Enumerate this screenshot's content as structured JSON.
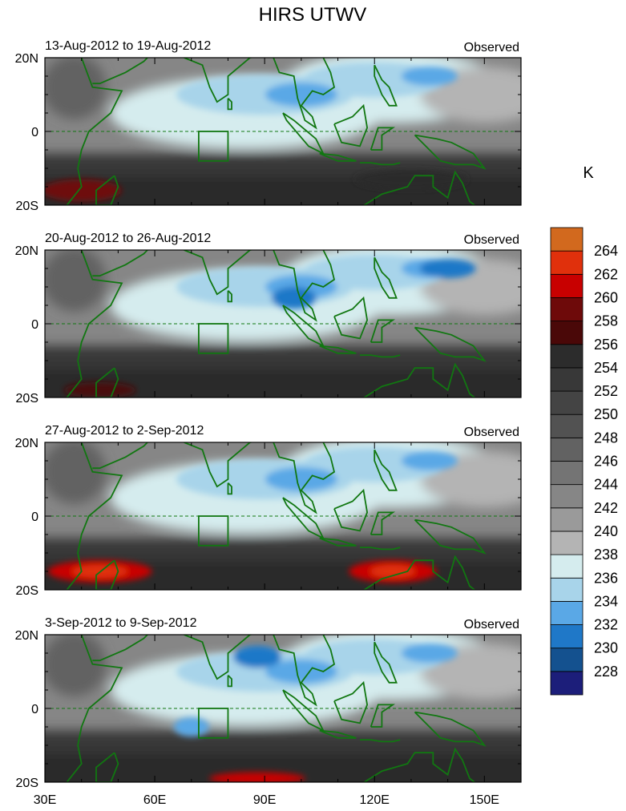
{
  "title": "HIRS UTWV",
  "colorbar": {
    "unit_label": "K",
    "levels": [
      228,
      230,
      232,
      234,
      236,
      238,
      240,
      242,
      244,
      246,
      248,
      250,
      252,
      254,
      256,
      258,
      260,
      262,
      264
    ],
    "colors": [
      "#1c1e7a",
      "#14518f",
      "#1f78c8",
      "#5aa8e6",
      "#a8d4ea",
      "#d5ecee",
      "#b4b4b4",
      "#9a9a9a",
      "#868686",
      "#747474",
      "#626262",
      "#525252",
      "#444444",
      "#383838",
      "#2c2c2c",
      "#4a0808",
      "#6e0a0a",
      "#c80000",
      "#e0300c",
      "#d2691e"
    ]
  },
  "chart_data": [
    {
      "type": "heatmap",
      "left_title": "13-Aug-2012 to 19-Aug-2012",
      "right_title": "Observed",
      "ylim": [
        -20,
        20
      ],
      "xlim": [
        30,
        160
      ],
      "y_ticks": [
        "20N",
        "0",
        "20S"
      ],
      "x_ticks": []
    },
    {
      "type": "heatmap",
      "left_title": "20-Aug-2012 to 26-Aug-2012",
      "right_title": "Observed",
      "ylim": [
        -20,
        20
      ],
      "xlim": [
        30,
        160
      ],
      "y_ticks": [
        "20N",
        "0",
        "20S"
      ],
      "x_ticks": []
    },
    {
      "type": "heatmap",
      "left_title": "27-Aug-2012 to 2-Sep-2012",
      "right_title": "Observed",
      "ylim": [
        -20,
        20
      ],
      "xlim": [
        30,
        160
      ],
      "y_ticks": [
        "20N",
        "0",
        "20S"
      ],
      "x_ticks": []
    },
    {
      "type": "heatmap",
      "left_title": "3-Sep-2012 to 9-Sep-2012",
      "right_title": "Observed",
      "ylim": [
        -20,
        20
      ],
      "xlim": [
        30,
        160
      ],
      "y_ticks": [
        "20N",
        "0",
        "20S"
      ],
      "x_ticks": [
        "30E",
        "60E",
        "90E",
        "120E",
        "150E"
      ]
    }
  ]
}
